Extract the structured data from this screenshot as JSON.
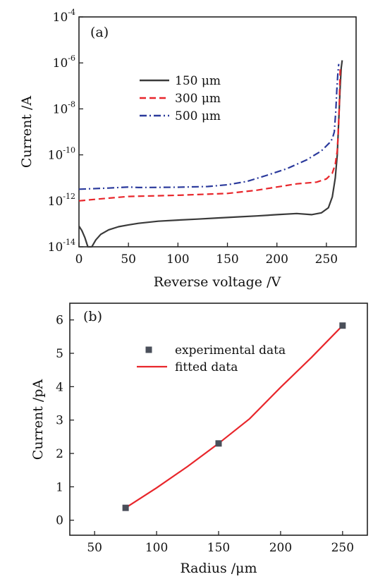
{
  "chart_data": [
    {
      "panel_label": "(a)",
      "type": "line",
      "xlabel": "Reverse voltage /V",
      "ylabel": "Current /A",
      "xlim": [
        0,
        280
      ],
      "ylim": [
        1e-14,
        0.0001
      ],
      "yscale": "log",
      "xticks": [
        0,
        50,
        100,
        150,
        200,
        250
      ],
      "yticks": [
        {
          "base": "10",
          "exp": "-4",
          "value": 0.0001
        },
        {
          "base": "10",
          "exp": "-6",
          "value": 1e-06
        },
        {
          "base": "10",
          "exp": "-8",
          "value": 1e-08
        },
        {
          "base": "10",
          "exp": "-10",
          "value": 1e-10
        },
        {
          "base": "10",
          "exp": "-12",
          "value": 1e-12
        },
        {
          "base": "10",
          "exp": "-14",
          "value": 1e-14
        }
      ],
      "legend_position": "upper-left",
      "series": [
        {
          "name": "150 μm",
          "color": "#3a3a3a",
          "style": "solid",
          "points": [
            [
              0,
              8e-14
            ],
            [
              3,
              5e-14
            ],
            [
              6,
              2.5e-14
            ],
            [
              9,
              1e-14
            ],
            [
              13,
              1e-14
            ],
            [
              17,
              2e-14
            ],
            [
              22,
              3.5e-14
            ],
            [
              30,
              5.5e-14
            ],
            [
              40,
              7.5e-14
            ],
            [
              50,
              9e-14
            ],
            [
              60,
              1.05e-13
            ],
            [
              80,
              1.3e-13
            ],
            [
              100,
              1.45e-13
            ],
            [
              120,
              1.6e-13
            ],
            [
              140,
              1.8e-13
            ],
            [
              160,
              2e-13
            ],
            [
              180,
              2.2e-13
            ],
            [
              200,
              2.5e-13
            ],
            [
              220,
              2.8e-13
            ],
            [
              235,
              2.5e-13
            ],
            [
              245,
              3e-13
            ],
            [
              252,
              5e-13
            ],
            [
              256,
              1.5e-12
            ],
            [
              259,
              1e-11
            ],
            [
              261,
              1e-10
            ],
            [
              262,
              1e-09
            ],
            [
              263,
              1e-08
            ],
            [
              264,
              1e-07
            ],
            [
              265,
              6e-07
            ],
            [
              266,
              1.3e-06
            ]
          ]
        },
        {
          "name": "300 μm",
          "color": "#e8262b",
          "style": "dashed",
          "points": [
            [
              0,
              1e-12
            ],
            [
              20,
              1.2e-12
            ],
            [
              50,
              1.55e-12
            ],
            [
              100,
              1.75e-12
            ],
            [
              150,
              2.1e-12
            ],
            [
              180,
              2.9e-12
            ],
            [
              200,
              4e-12
            ],
            [
              220,
              5.5e-12
            ],
            [
              240,
              6.5e-12
            ],
            [
              250,
              9e-12
            ],
            [
              256,
              1.6e-11
            ],
            [
              259,
              4e-11
            ],
            [
              261,
              1.5e-10
            ],
            [
              262,
              1e-09
            ],
            [
              263,
              1e-08
            ],
            [
              263.5,
              1e-07
            ],
            [
              264,
              6e-07
            ]
          ]
        },
        {
          "name": "500 μm",
          "color": "#2b3a9c",
          "style": "dashdot",
          "points": [
            [
              0,
              3.2e-12
            ],
            [
              30,
              3.6e-12
            ],
            [
              50,
              4e-12
            ],
            [
              60,
              3.8e-12
            ],
            [
              100,
              3.9e-12
            ],
            [
              130,
              4.2e-12
            ],
            [
              150,
              5e-12
            ],
            [
              170,
              7e-12
            ],
            [
              190,
              1.3e-11
            ],
            [
              210,
              2.5e-11
            ],
            [
              230,
              6e-11
            ],
            [
              245,
              1.5e-10
            ],
            [
              253,
              3.3e-10
            ],
            [
              256,
              5e-10
            ],
            [
              258,
              1e-09
            ],
            [
              259.5,
              8e-09
            ],
            [
              260.5,
              6e-08
            ],
            [
              261.5,
              3e-07
            ],
            [
              262.5,
              9e-07
            ]
          ]
        }
      ]
    },
    {
      "panel_label": "(b)",
      "type": "scatter",
      "xlabel": "Radius /μm",
      "ylabel": "Current /pA",
      "xlim": [
        30,
        270
      ],
      "ylim": [
        -0.45,
        6.5
      ],
      "xticks": [
        50,
        100,
        150,
        200,
        250
      ],
      "yticks": [
        0,
        1,
        2,
        3,
        4,
        5,
        6
      ],
      "legend_position": "upper-left",
      "series": [
        {
          "name": "experimental data",
          "marker": "square",
          "color": "#4a4f5a",
          "x": [
            75,
            150,
            250
          ],
          "y": [
            0.37,
            2.3,
            5.83
          ]
        },
        {
          "name": "fitted data",
          "style": "solid",
          "color": "#e8262b",
          "x": [
            75,
            100,
            125,
            150,
            175,
            200,
            225,
            250
          ],
          "y": [
            0.37,
            0.97,
            1.61,
            2.3,
            3.04,
            3.98,
            4.88,
            5.83
          ]
        }
      ]
    }
  ]
}
